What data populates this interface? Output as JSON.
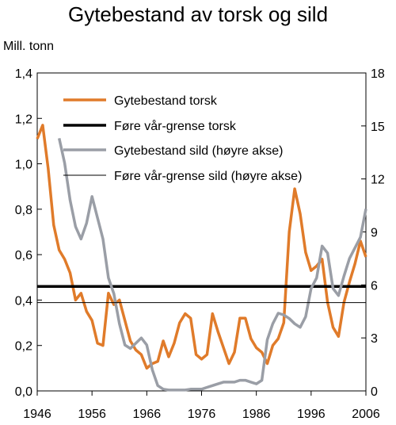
{
  "chart_data": {
    "type": "line",
    "title": "Gytebestand av torsk og sild",
    "unit_label": "Mill. tonn",
    "x_ticks": [
      "1946",
      "1956",
      "1966",
      "1976",
      "1986",
      "1996",
      "2006"
    ],
    "x_tick_values": [
      1946,
      1956,
      1966,
      1976,
      1986,
      1996,
      2006
    ],
    "xlim": [
      1946,
      2006
    ],
    "left_axis": {
      "ticks": [
        "0,0",
        "0,2",
        "0,4",
        "0,6",
        "0,8",
        "1,0",
        "1,2",
        "1,4"
      ],
      "tick_values": [
        0,
        0.2,
        0.4,
        0.6,
        0.8,
        1.0,
        1.2,
        1.4
      ],
      "ylim": [
        0,
        1.4
      ]
    },
    "right_axis": {
      "ticks": [
        "0",
        "3",
        "6",
        "9",
        "12",
        "15",
        "18"
      ],
      "tick_values": [
        0,
        3,
        6,
        9,
        12,
        15,
        18
      ],
      "ylim": [
        0,
        18
      ]
    },
    "grid": false,
    "legend_placement": "top",
    "colors": {
      "torsk": "#e07b2a",
      "sild": "#9a9ea6",
      "ref": "#000000"
    },
    "series": [
      {
        "name": "Gytebestand torsk",
        "axis": "left",
        "x": [
          1946,
          1947,
          1948,
          1949,
          1950,
          1951,
          1952,
          1953,
          1954,
          1955,
          1956,
          1957,
          1958,
          1959,
          1960,
          1961,
          1962,
          1963,
          1964,
          1965,
          1966,
          1967,
          1968,
          1969,
          1970,
          1971,
          1972,
          1973,
          1974,
          1975,
          1976,
          1977,
          1978,
          1979,
          1980,
          1981,
          1982,
          1983,
          1984,
          1985,
          1986,
          1987,
          1988,
          1989,
          1990,
          1991,
          1992,
          1993,
          1994,
          1995,
          1996,
          1997,
          1998,
          1999,
          2000,
          2001,
          2002,
          2003,
          2004,
          2005,
          2006
        ],
        "y": [
          1.11,
          1.17,
          0.98,
          0.73,
          0.62,
          0.58,
          0.52,
          0.4,
          0.43,
          0.35,
          0.31,
          0.21,
          0.2,
          0.43,
          0.38,
          0.4,
          0.31,
          0.22,
          0.18,
          0.16,
          0.1,
          0.12,
          0.13,
          0.22,
          0.15,
          0.21,
          0.3,
          0.34,
          0.32,
          0.16,
          0.14,
          0.16,
          0.34,
          0.26,
          0.19,
          0.12,
          0.17,
          0.32,
          0.32,
          0.23,
          0.19,
          0.17,
          0.12,
          0.2,
          0.23,
          0.3,
          0.7,
          0.89,
          0.78,
          0.61,
          0.53,
          0.55,
          0.58,
          0.39,
          0.28,
          0.24,
          0.39,
          0.48,
          0.56,
          0.66,
          0.59
        ]
      },
      {
        "name": "Føre vår-grense torsk",
        "axis": "left",
        "x": [
          1946,
          2006
        ],
        "y": [
          0.46,
          0.46
        ]
      },
      {
        "name": "Gytebestand sild (høyre akse)",
        "axis": "right",
        "x": [
          1950,
          1951,
          1952,
          1953,
          1954,
          1955,
          1956,
          1957,
          1958,
          1959,
          1960,
          1961,
          1962,
          1963,
          1964,
          1965,
          1966,
          1967,
          1968,
          1969,
          1970,
          1971,
          1972,
          1973,
          1974,
          1975,
          1976,
          1977,
          1978,
          1979,
          1980,
          1981,
          1982,
          1983,
          1984,
          1985,
          1986,
          1987,
          1988,
          1989,
          1990,
          1991,
          1992,
          1993,
          1994,
          1995,
          1996,
          1997,
          1998,
          1999,
          2000,
          2001,
          2002,
          2003,
          2004,
          2005,
          2006
        ],
        "y": [
          14.3,
          12.9,
          10.8,
          9.3,
          8.6,
          9.5,
          11.0,
          9.8,
          8.6,
          6.4,
          5.5,
          3.8,
          2.6,
          2.4,
          2.7,
          3.0,
          2.6,
          1.2,
          0.3,
          0.1,
          0.05,
          0.05,
          0.05,
          0.05,
          0.1,
          0.1,
          0.1,
          0.2,
          0.3,
          0.4,
          0.5,
          0.5,
          0.5,
          0.6,
          0.6,
          0.5,
          0.4,
          0.6,
          2.9,
          3.8,
          4.4,
          4.3,
          4.1,
          3.8,
          3.6,
          4.2,
          5.8,
          6.4,
          8.2,
          7.8,
          5.8,
          5.4,
          6.5,
          7.5,
          8.1,
          8.7,
          10.3
        ]
      },
      {
        "name": "Føre vår-grense sild (høyre akse)",
        "axis": "right",
        "x": [
          1946,
          2006
        ],
        "y": [
          5.0,
          5.0
        ]
      }
    ]
  }
}
